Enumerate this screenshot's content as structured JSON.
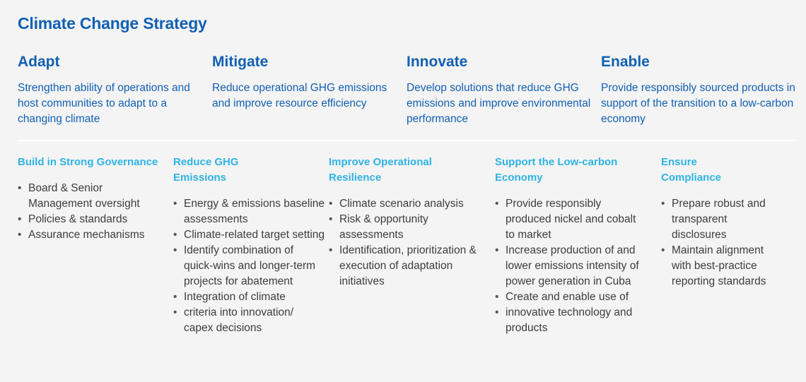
{
  "title": "Climate Change Strategy",
  "pillars": [
    {
      "heading": "Adapt",
      "text": "Strengthen ability of operations and host communities to adapt to a changing climate"
    },
    {
      "heading": "Mitigate",
      "text": "Reduce operational GHG emissions and improve resource efficiency"
    },
    {
      "heading": "Innovate",
      "text": "Develop solutions that reduce GHG emissions and improve environmental performance"
    },
    {
      "heading": "Enable",
      "text": "Provide responsibly sourced products in support of the transition to a low-carbon economy"
    }
  ],
  "columns": [
    {
      "heading": "Build in Strong Governance",
      "items": [
        "Board & Senior Management oversight",
        "Policies & standards",
        "Assurance mechanisms"
      ]
    },
    {
      "heading": "Reduce GHG Emissions",
      "items": [
        "Energy & emissions baseline assessments",
        "Climate-related target setting",
        "Identify combination of quick-wins and longer-term projects for abatement",
        "Integration of climate",
        "criteria into innovation/ capex decisions"
      ]
    },
    {
      "heading": "Improve Operational Resilience",
      "items": [
        "Climate scenario analysis",
        "Risk & opportunity assessments",
        "Identification, prioritization & execution of adaptation initiatives"
      ]
    },
    {
      "heading": "Support the Low-carbon Economy",
      "items": [
        "Provide responsibly produced nickel and cobalt to market",
        "Increase production of and lower emissions intensity of power generation in Cuba",
        "Create and enable use of",
        "innovative technology and products"
      ]
    },
    {
      "heading": "Ensure Compliance",
      "items": [
        "Prepare robust and transparent disclosures",
        "Maintain alignment with best-practice reporting standards"
      ]
    }
  ],
  "colors": {
    "title": "#1160b3",
    "subheading": "#2fb3e3",
    "body": "#3d3d3d",
    "background": "#f4f4f4"
  }
}
